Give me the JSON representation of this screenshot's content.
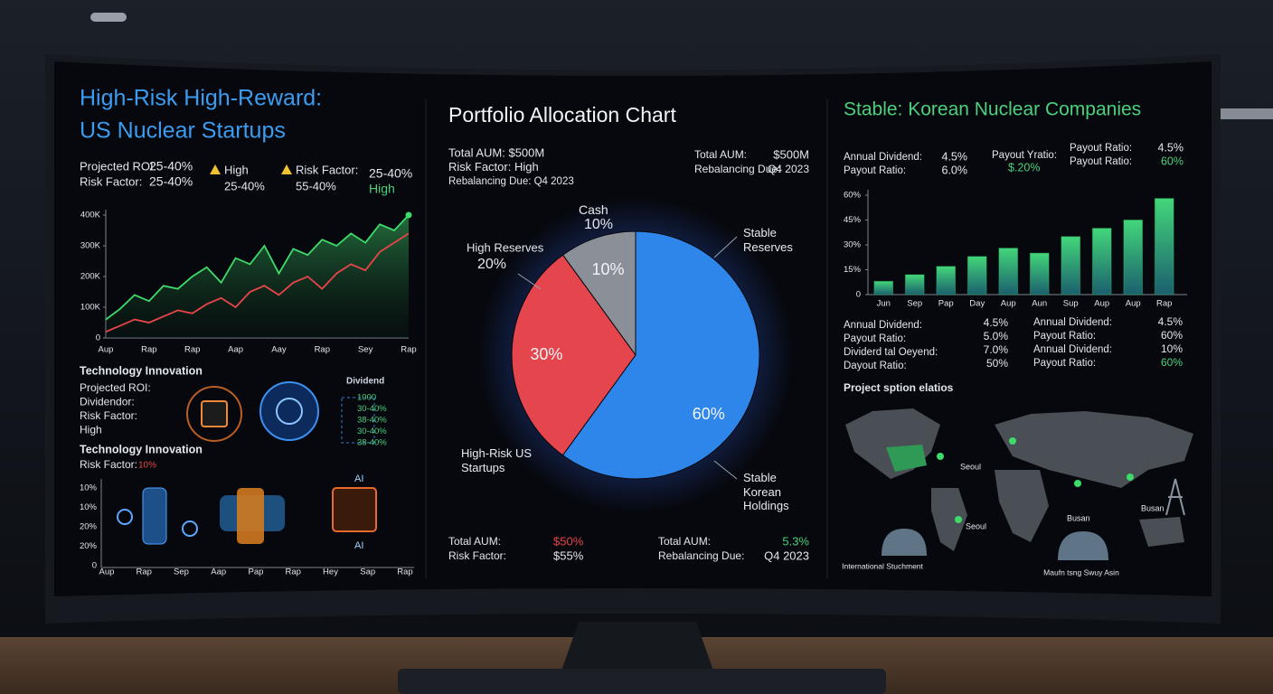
{
  "left": {
    "title_lines": [
      "High-Risk High-Reward:",
      "US Nuclear Startups"
    ],
    "stats": [
      [
        "Projected ROI:",
        "25-40%"
      ],
      [
        "Risk Factor:",
        "25-40%"
      ]
    ],
    "alerts": [
      [
        "High",
        "25-40%"
      ],
      [
        "Risk Factor:",
        "55-40%"
      ]
    ],
    "badge": [
      "25-40%",
      "High"
    ],
    "tech_title": "Technology Innovation",
    "tech_labels": [
      "Projected ROI:",
      "Dividendor:",
      "Risk Factor:",
      "High"
    ],
    "dividend_title": "Dividend",
    "dividend_list": [
      "1000",
      "30-40%",
      "38-40%",
      "30-40%",
      "38-40%"
    ],
    "tech_title_2": "Technology Innovation",
    "tech_risk": [
      "Risk Factor:",
      "10%"
    ],
    "ai_labels": [
      "AI",
      "AI"
    ],
    "mini_axis": {
      "y": [
        "10%",
        "10%",
        "20%",
        "20%",
        "0"
      ],
      "x": [
        "Aup",
        "Rap",
        "Sep",
        "Aap",
        "Pap",
        "Rap",
        "Hey",
        "Sap",
        "Rap"
      ]
    }
  },
  "center": {
    "title": "Portfolio Allocation Chart",
    "left_info": [
      "Total AUM: $500M",
      "Risk Factor: High",
      "Rebalancing Due: Q4 2023"
    ],
    "right_info": [
      [
        "Total AUM:",
        "$500M"
      ],
      [
        "Rebalancing Due:",
        "Q4 2023"
      ]
    ],
    "annotations": [
      "10%",
      "High Reserves",
      "20%",
      "Stable Reserves"
    ],
    "bottom_left": [
      [
        "Total AUM:",
        "$50%"
      ],
      [
        "Risk Factor:",
        "$55%"
      ]
    ],
    "bottom_right": [
      [
        "Total AUM:",
        "5.3%"
      ],
      [
        "Rebalancing Due:",
        "Q4 2023"
      ]
    ]
  },
  "right": {
    "title": "Stable: Korean Nuclear Companies",
    "top_stats": [
      [
        [
          "Annual Dividend:",
          "4.5%"
        ],
        [
          "Payout Ratio:",
          "6.0%"
        ]
      ],
      [
        [
          "Payout Yratio:",
          "$.20%"
        ]
      ],
      [
        [
          "Payout Ratio:",
          "4.5%"
        ],
        [
          "Payout Ratio:",
          "60%"
        ]
      ]
    ],
    "stats_left": [
      [
        "Annual Dividend:",
        "4.5%"
      ],
      [
        "Payout Ratio:",
        "5.0%"
      ],
      [
        "Dividerd tal Oeyend:",
        "7.0%"
      ],
      [
        "Dayout Ratio:",
        "50%"
      ]
    ],
    "stats_right": [
      [
        "Annual Dividend:",
        "4.5%"
      ],
      [
        "Payout Ratio:",
        "60%"
      ],
      [
        "Annual Dividend:",
        "10%"
      ],
      [
        "Payout Ratio:",
        "60%"
      ]
    ],
    "map_title": "Project sption elatios",
    "map_labels": [
      "Seoul",
      "Seoul",
      "Busan",
      "Busan"
    ],
    "captions": [
      "International Stuchment",
      "Maufn tsng Swuy Asin"
    ]
  },
  "chart_data": [
    {
      "type": "line",
      "categories": [
        "Aup",
        null,
        null,
        "Rap",
        null,
        null,
        "Rap",
        null,
        null,
        "Aap",
        null,
        null,
        "Aay",
        null,
        null,
        "Rap",
        null,
        null,
        "Sey",
        null,
        null,
        "Rap"
      ],
      "series": [
        {
          "color": "#3ddc6a",
          "values": [
            60000,
            95000,
            140000,
            120000,
            170000,
            160000,
            200000,
            230000,
            180000,
            260000,
            240000,
            300000,
            210000,
            290000,
            270000,
            320000,
            300000,
            340000,
            310000,
            370000,
            350000,
            400000
          ]
        },
        {
          "color": "#e8454a",
          "values": [
            20000,
            40000,
            60000,
            50000,
            70000,
            90000,
            80000,
            110000,
            130000,
            100000,
            150000,
            170000,
            140000,
            180000,
            200000,
            160000,
            210000,
            240000,
            220000,
            280000,
            310000,
            340000
          ]
        }
      ],
      "ylim": [
        0,
        400000
      ],
      "yticks": [
        0,
        {
          "value": 100000,
          "label": "100K"
        },
        {
          "value": 200000,
          "label": "200K"
        },
        {
          "value": 300000,
          "label": "300K"
        },
        {
          "value": 400000,
          "label": "400K"
        }
      ],
      "grid": false
    },
    {
      "type": "pie",
      "categories": [
        "Cash",
        "High-Risk US Startups",
        "Stable Korean Holdings"
      ],
      "values": [
        10,
        30,
        60
      ],
      "value_labels": [
        "10%",
        "30%",
        "60%"
      ],
      "colors": [
        "#8a8f98",
        "#e5464d",
        "#2f86ea"
      ]
    },
    {
      "type": "bar",
      "categories": [
        "Jun",
        "Sep",
        "Pap",
        "Day",
        "Aup",
        "Aun",
        "Sup",
        "Aup",
        "Aup",
        "Rap"
      ],
      "values": [
        8,
        12,
        17,
        23,
        28,
        25,
        35,
        40,
        45,
        58
      ],
      "color": "#35c46a",
      "ylim": [
        0,
        60
      ],
      "yticks": [
        0,
        {
          "value": 15,
          "label": "15%"
        },
        {
          "value": 30,
          "label": "30%"
        },
        {
          "value": 45,
          "label": "45%"
        },
        {
          "value": 60,
          "label": "60%"
        }
      ],
      "grid": false
    }
  ]
}
